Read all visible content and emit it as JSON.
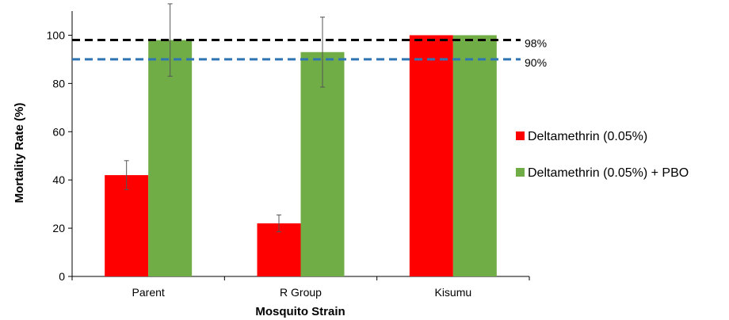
{
  "chart_data": {
    "type": "bar",
    "title": "",
    "xlabel": "Mosquito Strain",
    "ylabel": "Mortality Rate (%)",
    "ylim": [
      0,
      110
    ],
    "yticks": [
      0,
      20,
      40,
      60,
      80,
      100
    ],
    "categories": [
      "Parent",
      "R Group",
      "Kisumu"
    ],
    "series": [
      {
        "name": "Deltamethrin (0.05%)",
        "color": "#ff0000",
        "values": [
          42,
          22,
          100
        ],
        "error": [
          6,
          3.5,
          null
        ]
      },
      {
        "name": "Deltamethrin (0.05%) + PBO",
        "color": "#70ad47",
        "values": [
          98,
          93,
          100
        ],
        "error": [
          15,
          14.5,
          null
        ]
      }
    ],
    "reference_lines": [
      {
        "value": 98,
        "label": "98%",
        "color": "#000000",
        "style": "dashed"
      },
      {
        "value": 90,
        "label": "90%",
        "color": "#2e75b6",
        "style": "dashed"
      }
    ],
    "grid": false,
    "legend_position": "right"
  }
}
